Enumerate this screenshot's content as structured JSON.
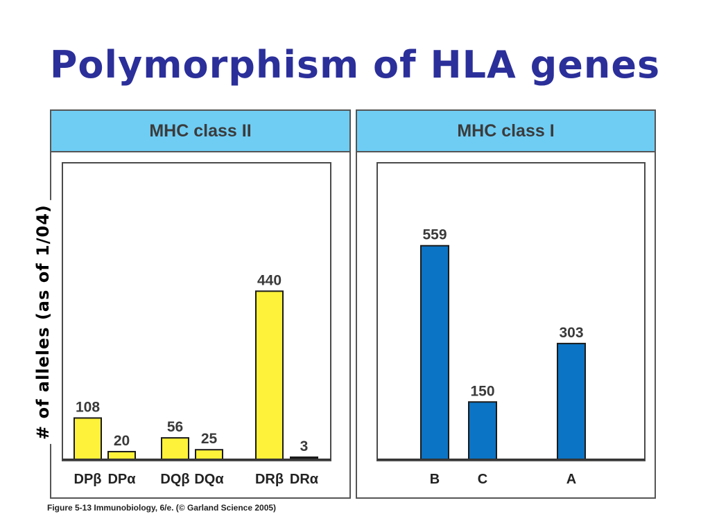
{
  "title": "Polymorphism of HLA genes",
  "ylabel": "# of alleles (as of 1/04)",
  "caption": "Figure 5-13  Immunobiology, 6/e. (© Garland Science 2005)",
  "colors": {
    "title": "#2b2f9a",
    "header": "#6fcdf4",
    "class2_bar": "#fef23a",
    "class1_bar": "#0b74c4",
    "dr_alpha_bar": "#1a1a1a"
  },
  "chart_data": [
    {
      "type": "bar",
      "panel_title": "MHC class II",
      "categories": [
        "DPβ",
        "DPα",
        "DQβ",
        "DQα",
        "DRβ",
        "DRα"
      ],
      "values": [
        108,
        20,
        56,
        25,
        440,
        3
      ],
      "labels": [
        "108",
        "20",
        "56",
        "25",
        "440",
        "3"
      ],
      "ylim": [
        0,
        600
      ]
    },
    {
      "type": "bar",
      "panel_title": "MHC class I",
      "categories": [
        "B",
        "C",
        "A"
      ],
      "values": [
        559,
        150,
        303
      ],
      "labels": [
        "559",
        "150",
        "303"
      ],
      "ylim": [
        0,
        600
      ]
    }
  ]
}
